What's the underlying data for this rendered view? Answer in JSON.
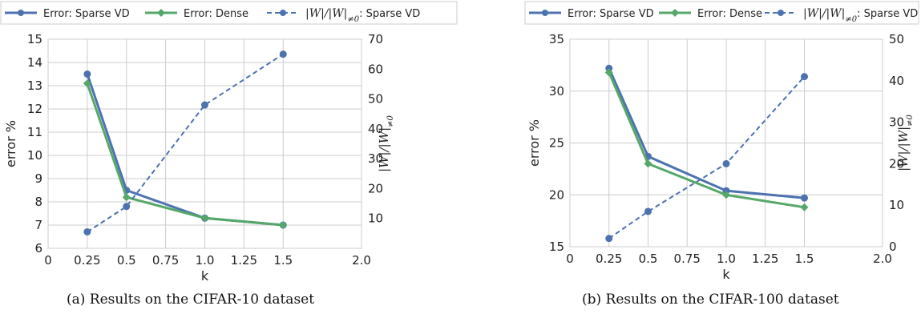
{
  "legend": {
    "dense_error": "Error: Dense",
    "sparse_error": "Error: Sparse VD",
    "sparse_ratio": "|W|/|W|≠0: Sparse VD"
  },
  "colors": {
    "blue": "#4c72b0",
    "green": "#55a868",
    "grid": "#cccccc"
  },
  "captions": {
    "a": "(a) Results on the CIFAR-10 dataset",
    "b": "(b) Results on the CIFAR-100 dataset"
  },
  "chart_data": [
    {
      "type": "line",
      "xlabel": "k",
      "ylabel": "error %",
      "y2label": "|W|/|W|≠0",
      "xlim": [
        0,
        2.0
      ],
      "ylim": [
        6,
        15
      ],
      "y2lim": [
        0,
        70
      ],
      "xticks": [
        "0",
        "0.25",
        "0.5",
        "0.75",
        "1.0",
        "1.25",
        "1.5",
        "2.0"
      ],
      "xtick_values": [
        0,
        0.25,
        0.5,
        0.75,
        1.0,
        1.25,
        1.5,
        2.0
      ],
      "yticks": [
        6,
        7,
        8,
        9,
        10,
        11,
        12,
        13,
        14,
        15
      ],
      "y2ticks": [
        10,
        20,
        30,
        40,
        50,
        60,
        70
      ],
      "grid": true,
      "legend_position": "top",
      "x": [
        0.25,
        0.5,
        1.0,
        1.5
      ],
      "series": [
        {
          "name": "Error: Sparse VD",
          "axis": "left",
          "style": "solid",
          "marker": "circle",
          "values": [
            13.5,
            8.5,
            7.3,
            7.0
          ]
        },
        {
          "name": "Error: Dense",
          "axis": "left",
          "style": "solid",
          "marker": "diamond",
          "values": [
            13.1,
            8.2,
            7.3,
            7.0
          ]
        },
        {
          "name": "|W|/|W|≠0: Sparse VD",
          "axis": "right",
          "style": "dashed",
          "marker": "circle",
          "values": [
            5.5,
            14,
            48,
            65
          ]
        }
      ]
    },
    {
      "type": "line",
      "xlabel": "k",
      "ylabel": "error %",
      "y2label": "|W|/|W|≠0",
      "xlim": [
        0,
        2.0
      ],
      "ylim": [
        15,
        35
      ],
      "y2lim": [
        0,
        50
      ],
      "xticks": [
        "0",
        "0.25",
        "0.5",
        "0.75",
        "1.0",
        "1.25",
        "1.5",
        "2.0"
      ],
      "xtick_values": [
        0,
        0.25,
        0.5,
        0.75,
        1.0,
        1.25,
        1.5,
        2.0
      ],
      "yticks": [
        15,
        20,
        25,
        30,
        35
      ],
      "y2ticks": [
        0,
        10,
        20,
        30,
        40,
        50
      ],
      "grid": true,
      "legend_position": "top",
      "x": [
        0.25,
        0.5,
        1.0,
        1.5
      ],
      "series": [
        {
          "name": "Error: Sparse VD",
          "axis": "left",
          "style": "solid",
          "marker": "circle",
          "values": [
            32.2,
            23.7,
            20.4,
            19.7
          ]
        },
        {
          "name": "Error: Dense",
          "axis": "left",
          "style": "solid",
          "marker": "diamond",
          "values": [
            31.8,
            23.0,
            20.0,
            18.8
          ]
        },
        {
          "name": "|W|/|W|≠0: Sparse VD",
          "axis": "right",
          "style": "dashed",
          "marker": "circle",
          "values": [
            2,
            8.5,
            20,
            41
          ]
        }
      ]
    }
  ]
}
